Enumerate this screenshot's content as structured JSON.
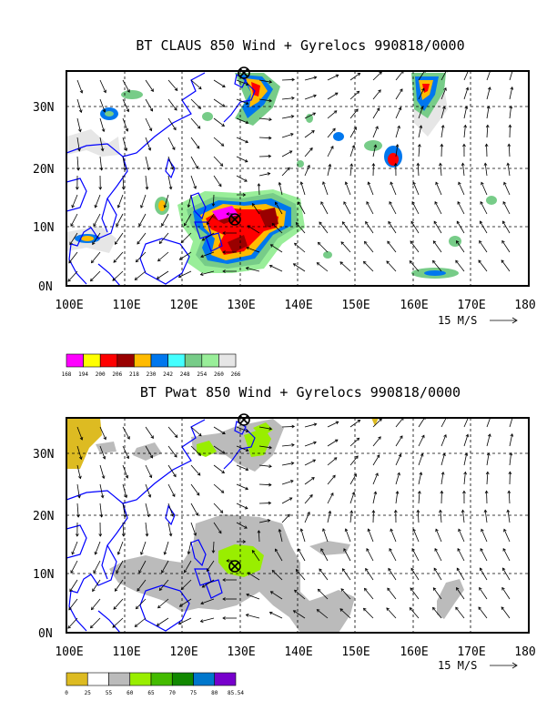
{
  "top_panel": {
    "title": "BT CLAUS 850 Wind + Gyrelocs 990818/0000",
    "lon_ticks": [
      "100E",
      "110E",
      "120E",
      "130E",
      "140E",
      "150E",
      "160E",
      "170E",
      "180"
    ],
    "lat_ticks": [
      "0N",
      "10N",
      "20N",
      "30N"
    ],
    "reference_vector": "15 M/S",
    "colorbar": {
      "labels": [
        "168",
        "194",
        "200",
        "206",
        "218",
        "230",
        "242",
        "248",
        "254",
        "260",
        "266"
      ],
      "colors": [
        "#ff00ff",
        "#ffff00",
        "#ff0000",
        "#990000",
        "#ffbb00",
        "#0077ee",
        "#44ffff",
        "#77cc88",
        "#99ee99",
        "#e6e6e6"
      ]
    }
  },
  "bottom_panel": {
    "title": "BT Pwat 850 Wind + Gyrelocs 990818/0000",
    "lon_ticks": [
      "100E",
      "110E",
      "120E",
      "130E",
      "140E",
      "150E",
      "160E",
      "170E",
      "180"
    ],
    "lat_ticks": [
      "0N",
      "10N",
      "20N",
      "30N"
    ],
    "reference_vector": "15 M/S",
    "colorbar": {
      "labels": [
        "0",
        "25",
        "55",
        "60",
        "65",
        "70",
        "75",
        "80",
        "85.54"
      ],
      "colors": [
        "#ddbb22",
        "#ffffff",
        "#bbbbbb",
        "#99ee00",
        "#44bb00",
        "#118800",
        "#0077cc",
        "#7700cc"
      ]
    }
  },
  "colors": {
    "coastline": "#0000ff",
    "grid": "#000000"
  }
}
